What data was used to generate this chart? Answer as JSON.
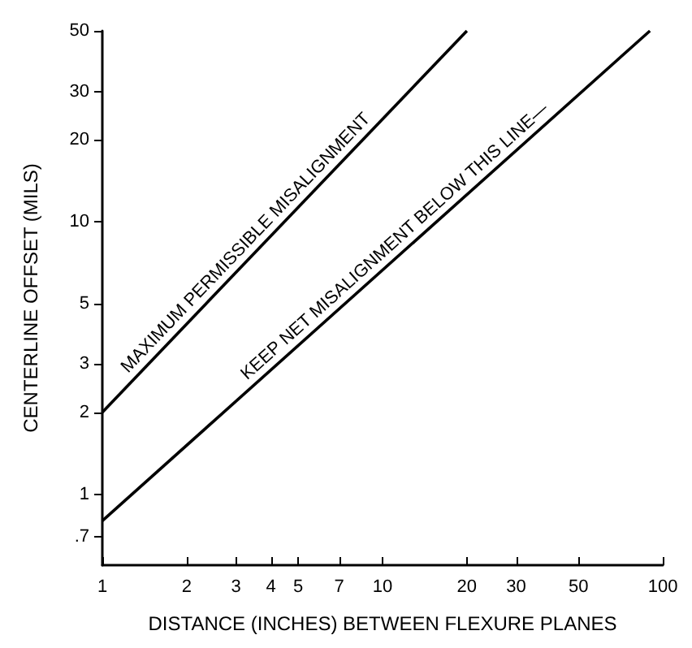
{
  "chart_data": {
    "type": "line",
    "xlabel": "DISTANCE (INCHES) BETWEEN FLEXURE PLANES",
    "ylabel": "CENTERLINE OFFSET (MILS)",
    "log": "xy",
    "grid": false,
    "legend": false,
    "marker": "none",
    "line_style": "solid",
    "series": [
      {
        "name": "MAXIMUM PERMISSIBLE MISALIGNMENT",
        "color": "#000000",
        "x": [
          1,
          20
        ],
        "values": [
          2,
          50
        ]
      },
      {
        "name": "KEEP NET MISALIGNMENT BELOW THIS LINE—",
        "color": "#000000",
        "x": [
          1,
          90
        ],
        "values": [
          0.8,
          50
        ]
      }
    ],
    "xlim": [
      1,
      100
    ],
    "xticks": [
      1,
      2,
      3,
      4,
      5,
      7,
      10,
      20,
      30,
      50,
      100
    ],
    "ylim": [
      0.55,
      50
    ],
    "yticks": [
      {
        "value": 0.7,
        "label": ".7"
      },
      1,
      2,
      3,
      5,
      10,
      20,
      30,
      50
    ]
  }
}
